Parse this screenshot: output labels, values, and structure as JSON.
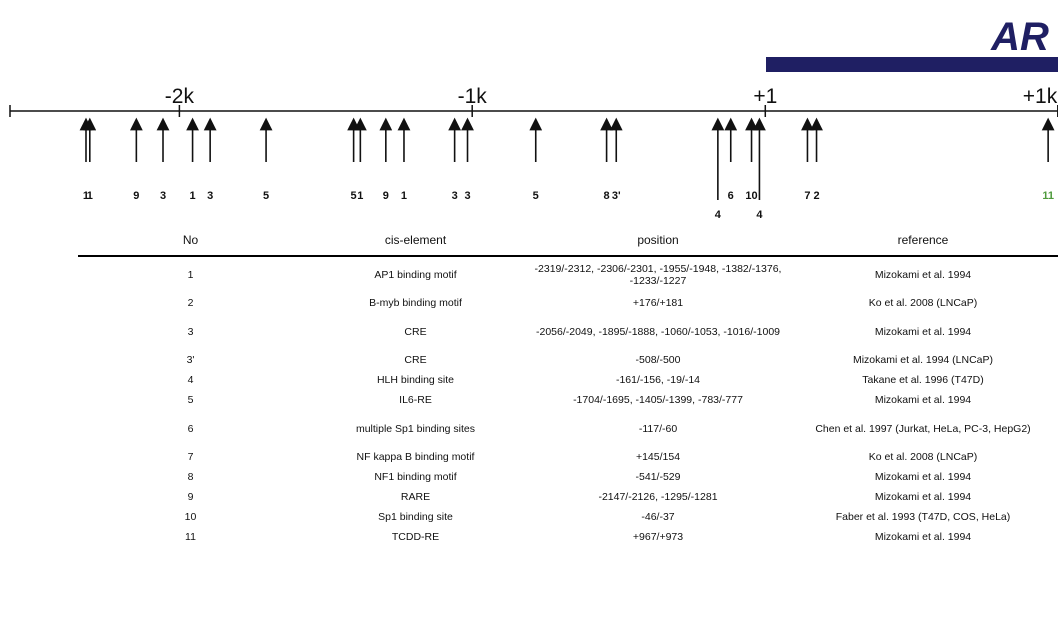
{
  "gene": {
    "label": "AR",
    "bar_color": "#1f1f63"
  },
  "axis": {
    "ticks": [
      {
        "label": "-2k",
        "value": -2000
      },
      {
        "label": "-1k",
        "value": -1000
      },
      {
        "label": "+1",
        "value": 1
      },
      {
        "label": "+1k",
        "value": 1000
      }
    ]
  },
  "sites": [
    {
      "label": "1",
      "value": -2319
    },
    {
      "label": "1",
      "value": -2306
    },
    {
      "label": "9",
      "value": -2147
    },
    {
      "label": "3",
      "value": -2056
    },
    {
      "label": "1",
      "value": -1955
    },
    {
      "label": "3",
      "value": -1895
    },
    {
      "label": "5",
      "value": -1704
    },
    {
      "label": "5",
      "value": -1405
    },
    {
      "label": "1",
      "value": -1382
    },
    {
      "label": "9",
      "value": -1295
    },
    {
      "label": "1",
      "value": -1233
    },
    {
      "label": "3",
      "value": -1060
    },
    {
      "label": "3",
      "value": -1016
    },
    {
      "label": "5",
      "value": -783
    },
    {
      "label": "8",
      "value": -541
    },
    {
      "label": "3'",
      "value": -508
    },
    {
      "label": "4",
      "value": -161
    },
    {
      "label": "6",
      "value": -117
    },
    {
      "label": "10",
      "value": -46
    },
    {
      "label": "4",
      "value": -19
    },
    {
      "label": "7",
      "value": 145
    },
    {
      "label": "2",
      "value": 176
    },
    {
      "label": "11",
      "value": 967,
      "color": "#4f9a3c"
    }
  ],
  "table": {
    "headers": {
      "no": "No",
      "cis": "cis-element",
      "position": "position",
      "reference": "reference"
    },
    "rows": [
      {
        "no": "1",
        "cis": "AP1 binding motif",
        "position": "-2319/-2312, -2306/-2301, -1955/-1948, -1382/-1376, -1233/-1227",
        "reference": "Mizokami et al. 1994"
      },
      {
        "no": "2",
        "cis": "B-myb binding motif",
        "position": "+176/+181",
        "reference": "Ko et al.  2008 (LNCaP)"
      },
      {
        "no": "3",
        "cis": "CRE",
        "position": "-2056/-2049, -1895/-1888, -1060/-1053, -1016/-1009",
        "reference": "Mizokami et al. 1994"
      },
      {
        "no": "3'",
        "cis": "CRE",
        "position": "-508/-500",
        "reference": "Mizokami et al. 1994 (LNCaP)"
      },
      {
        "no": "4",
        "cis": "HLH binding site",
        "position": "-161/-156, -19/-14",
        "reference": "Takane et al.  1996 (T47D)"
      },
      {
        "no": "5",
        "cis": "IL6-RE",
        "position": "-1704/-1695, -1405/-1399, -783/-777",
        "reference": "Mizokami et al. 1994"
      },
      {
        "no": "6",
        "cis": "multiple Sp1 binding sites",
        "position": "-117/-60",
        "reference": "Chen et al. 1997 (Jurkat, HeLa, PC-3, HepG2)"
      },
      {
        "no": "7",
        "cis": "NF kappa B binding motif",
        "position": "+145/154",
        "reference": "Ko et al. 2008 (LNCaP)"
      },
      {
        "no": "8",
        "cis": "NF1 binding motif",
        "position": "-541/-529",
        "reference": "Mizokami et al. 1994"
      },
      {
        "no": "9",
        "cis": "RARE",
        "position": "-2147/-2126, -1295/-1281",
        "reference": "Mizokami et al. 1994"
      },
      {
        "no": "10",
        "cis": "Sp1 binding site",
        "position": "-46/-37",
        "reference": "Faber et al. 1993 (T47D, COS, HeLa)"
      },
      {
        "no": "11",
        "cis": "TCDD-RE",
        "position": "+967/+973",
        "reference": "Mizokami et al. 1994"
      }
    ]
  }
}
